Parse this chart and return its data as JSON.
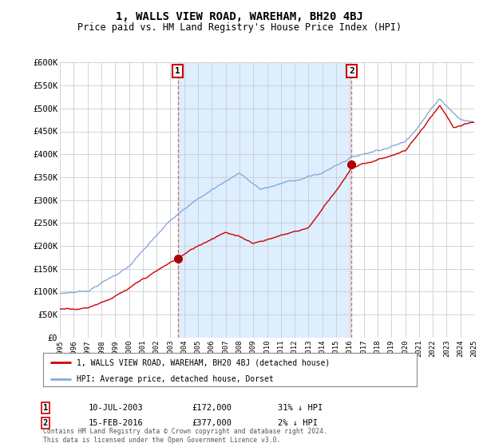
{
  "title": "1, WALLS VIEW ROAD, WAREHAM, BH20 4BJ",
  "subtitle": "Price paid vs. HM Land Registry's House Price Index (HPI)",
  "ylabel_ticks": [
    "£0",
    "£50K",
    "£100K",
    "£150K",
    "£200K",
    "£250K",
    "£300K",
    "£350K",
    "£400K",
    "£450K",
    "£500K",
    "£550K",
    "£600K"
  ],
  "ytick_values": [
    0,
    50000,
    100000,
    150000,
    200000,
    250000,
    300000,
    350000,
    400000,
    450000,
    500000,
    550000,
    600000
  ],
  "x_start_year": 1995,
  "x_end_year": 2025,
  "sale1_date": 2003.53,
  "sale1_price": 172000,
  "sale2_date": 2016.12,
  "sale2_price": 377000,
  "marker_color": "#aa0000",
  "hpi_line_color": "#88aadd",
  "sale_line_color": "#cc0000",
  "legend_label1": "1, WALLS VIEW ROAD, WAREHAM, BH20 4BJ (detached house)",
  "legend_label2": "HPI: Average price, detached house, Dorset",
  "annotation1_text": "10-JUL-2003",
  "annotation1_price": "£172,000",
  "annotation1_hpi": "31% ↓ HPI",
  "annotation2_text": "15-FEB-2016",
  "annotation2_price": "£377,000",
  "annotation2_hpi": "2% ↓ HPI",
  "footer": "Contains HM Land Registry data © Crown copyright and database right 2024.\nThis data is licensed under the Open Government Licence v3.0.",
  "bg_color": "#ffffff",
  "plot_bg_color": "#ffffff",
  "fill_color": "#ddeeff",
  "grid_color": "#cccccc"
}
